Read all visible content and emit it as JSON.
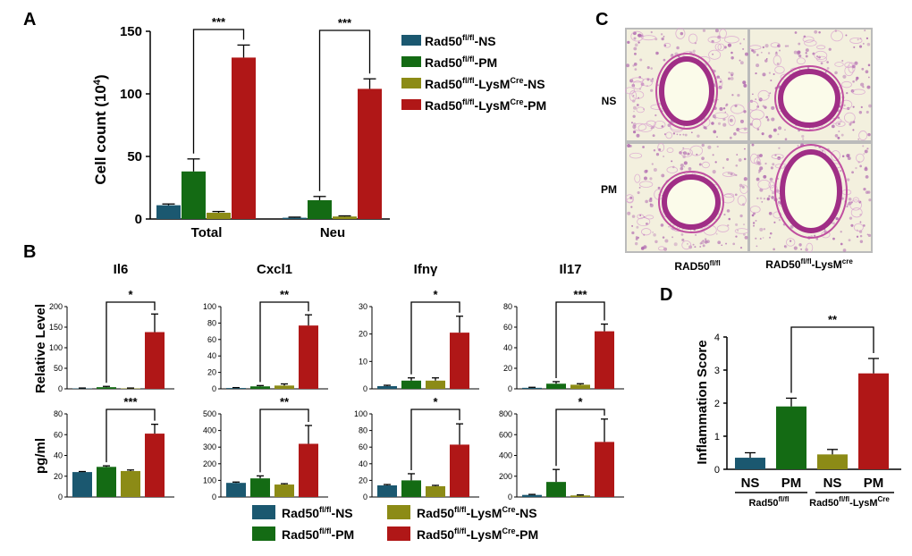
{
  "legend": {
    "items": [
      {
        "base": "Rad50",
        "sup": "fl/fl",
        "rest": "-NS",
        "sup2": "",
        "tail": "",
        "color": "#1b5870"
      },
      {
        "base": "Rad50",
        "sup": "fl/fl",
        "rest": "-PM",
        "sup2": "",
        "tail": "",
        "color": "#146b14"
      },
      {
        "base": "Rad50",
        "sup": "fl/fl",
        "rest": "-LysM",
        "sup2": "Cre",
        "tail": "-NS",
        "color": "#8c8b16"
      },
      {
        "base": "Rad50",
        "sup": "fl/fl",
        "rest": "-LysM",
        "sup2": "Cre",
        "tail": "-PM",
        "color": "#b01717"
      }
    ]
  },
  "panels": {
    "A": {
      "label": "A"
    },
    "B": {
      "label": "B"
    },
    "C": {
      "label": "C",
      "row_labels": [
        "NS",
        "PM"
      ],
      "col_labels": [
        {
          "base": "RAD50",
          "sup": "fl/fl",
          "rest": "",
          "sup2": ""
        },
        {
          "base": "RAD50",
          "sup": "fl/fl",
          "rest": "-LysM",
          "sup2": "cre"
        }
      ]
    },
    "D": {
      "label": "D",
      "group_labels": [
        {
          "base": "Rad50",
          "sup": "fl/fl",
          "rest": "",
          "sup2": ""
        },
        {
          "base": "Rad50",
          "sup": "fl/fl",
          "rest": "-LysM",
          "sup2": "Cre"
        }
      ]
    }
  },
  "chart_data": [
    {
      "id": "A",
      "type": "bar",
      "title": "",
      "ylabel": "Cell count (10⁴)",
      "categories": [
        "Total",
        "Neu"
      ],
      "ylim": [
        0,
        150
      ],
      "yticks": [
        "0",
        "50",
        "100",
        "150"
      ],
      "series": [
        {
          "name": "Rad50fl/fl-NS",
          "values": [
            11,
            1
          ],
          "errors": [
            1,
            0.5
          ]
        },
        {
          "name": "Rad50fl/fl-PM",
          "values": [
            38,
            15
          ],
          "errors": [
            10,
            3
          ]
        },
        {
          "name": "Rad50fl/fl-LysMCre-NS",
          "values": [
            5,
            2
          ],
          "errors": [
            1,
            0.5
          ]
        },
        {
          "name": "Rad50fl/fl-LysMCre-PM",
          "values": [
            129,
            104
          ],
          "errors": [
            10,
            8
          ]
        }
      ],
      "annotations": [
        "***",
        "***"
      ],
      "grid": false,
      "legend": "right"
    },
    {
      "id": "B-Il6-relative",
      "type": "bar",
      "title": "Il6",
      "ylabel": "Relative  Level",
      "ylim": [
        0,
        200
      ],
      "yticks": [
        "0",
        "50",
        "100",
        "150",
        "200"
      ],
      "values": [
        1,
        4,
        1,
        138
      ],
      "errors": [
        1,
        2,
        1,
        44
      ],
      "annotation": "*"
    },
    {
      "id": "B-Cxcl1-relative",
      "type": "bar",
      "title": "Cxcl1",
      "ylim": [
        0,
        100
      ],
      "yticks": [
        "0",
        "20",
        "40",
        "60",
        "80",
        "100"
      ],
      "values": [
        1,
        3,
        4,
        77
      ],
      "errors": [
        0.5,
        1,
        2,
        13
      ],
      "annotation": "**"
    },
    {
      "id": "B-Ifng-relative",
      "type": "bar",
      "title": "Ifnγ",
      "ylim": [
        0,
        30
      ],
      "yticks": [
        "0",
        "10",
        "20",
        "30"
      ],
      "values": [
        1,
        3,
        3,
        20.5
      ],
      "errors": [
        0.3,
        1,
        1,
        6
      ],
      "annotation": "*"
    },
    {
      "id": "B-Il17-relative",
      "type": "bar",
      "title": "Il17",
      "ylim": [
        0,
        80
      ],
      "yticks": [
        "0",
        "20",
        "40",
        "60",
        "80"
      ],
      "values": [
        1,
        5,
        4,
        56
      ],
      "errors": [
        0.5,
        2,
        1,
        7
      ],
      "annotation": "***"
    },
    {
      "id": "B-Il6-pgml",
      "type": "bar",
      "title": "",
      "ylabel": "pg/ml",
      "ylim": [
        0,
        80
      ],
      "yticks": [
        "0",
        "20",
        "40",
        "60",
        "80"
      ],
      "values": [
        24,
        29,
        25,
        61
      ],
      "errors": [
        0.5,
        1,
        1,
        9
      ],
      "annotation": "***"
    },
    {
      "id": "B-Cxcl1-pgml",
      "type": "bar",
      "title": "",
      "ylim": [
        0,
        500
      ],
      "yticks": [
        "0",
        "100",
        "200",
        "300",
        "400",
        "500"
      ],
      "values": [
        85,
        112,
        75,
        320
      ],
      "errors": [
        5,
        15,
        5,
        110
      ],
      "annotation": "**"
    },
    {
      "id": "B-Ifng-pgml",
      "type": "bar",
      "title": "",
      "ylim": [
        0,
        100
      ],
      "yticks": [
        "0",
        "20",
        "40",
        "60",
        "80",
        "100"
      ],
      "values": [
        14,
        20,
        13,
        63
      ],
      "errors": [
        1,
        8,
        1,
        25
      ],
      "annotation": "*"
    },
    {
      "id": "B-Il17-pgml",
      "type": "bar",
      "title": "",
      "ylim": [
        0,
        800
      ],
      "yticks": [
        "0",
        "200",
        "400",
        "600",
        "800"
      ],
      "values": [
        20,
        145,
        15,
        530
      ],
      "errors": [
        5,
        120,
        5,
        220
      ],
      "annotation": "*"
    },
    {
      "id": "D",
      "type": "bar",
      "title": "",
      "ylabel": "Inflammation Score",
      "categories": [
        "NS",
        "PM",
        "NS",
        "PM"
      ],
      "ylim": [
        0,
        4
      ],
      "yticks": [
        "0",
        "1",
        "2",
        "3",
        "4"
      ],
      "values": [
        0.35,
        1.9,
        0.45,
        2.9
      ],
      "errors": [
        0.15,
        0.25,
        0.15,
        0.45
      ],
      "annotation": "**"
    }
  ]
}
